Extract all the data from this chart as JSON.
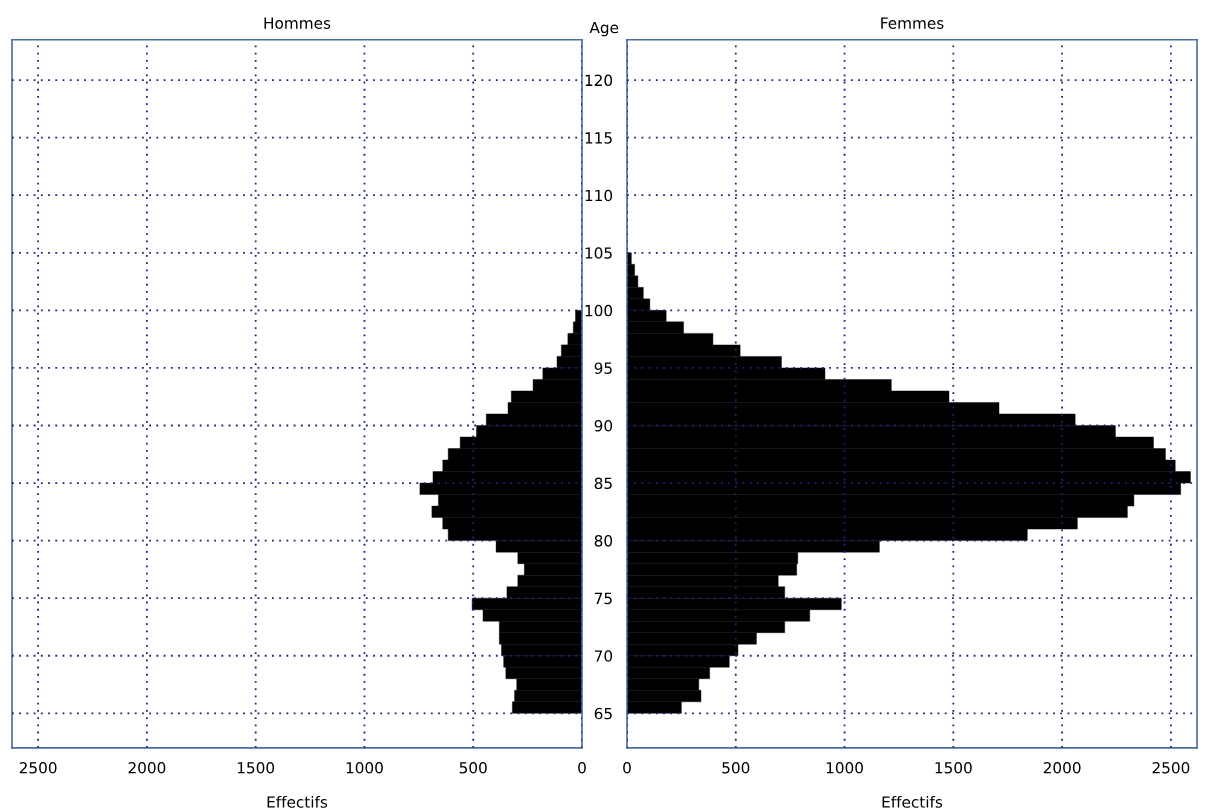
{
  "chart_data": [
    {
      "type": "bar",
      "orientation": "horizontal",
      "title": "Hommes",
      "xlabel": "Effectifs",
      "tick_labels": "x",
      "grid": true,
      "legend": false,
      "x": [
        65.5,
        66.5,
        67.5,
        68.5,
        69.5,
        70.5,
        71.5,
        72.5,
        73.5,
        74.5,
        75.5,
        76.5,
        77.5,
        78.5,
        79.5,
        80.5,
        81.5,
        82.5,
        83.5,
        84.5,
        85.5,
        86.5,
        87.5,
        88.5,
        89.5,
        90.5,
        91.5,
        92.5,
        93.5,
        94.5,
        95.5,
        96.5,
        97.5,
        98.5,
        99.5
      ],
      "values": [
        320,
        310,
        300,
        350,
        360,
        370,
        380,
        380,
        455,
        505,
        345,
        295,
        265,
        295,
        395,
        615,
        640,
        690,
        660,
        745,
        685,
        640,
        615,
        560,
        485,
        440,
        340,
        325,
        225,
        180,
        115,
        95,
        65,
        40,
        30
      ],
      "color": "#000000",
      "xlim": [
        2620,
        0
      ],
      "xticks": [
        0,
        500,
        1000,
        1500,
        2000,
        2500
      ],
      "ylim": [
        62,
        123.5
      ],
      "yticks": [
        65,
        70,
        75,
        80,
        85,
        90,
        95,
        100,
        105,
        110,
        115,
        120
      ]
    },
    {
      "type": "bar",
      "orientation": "horizontal",
      "title": "Femmes",
      "xlabel": "Effectifs",
      "ylabel": "Age",
      "grid": true,
      "legend": false,
      "x": [
        65.5,
        66.5,
        67.5,
        68.5,
        69.5,
        70.5,
        71.5,
        72.5,
        73.5,
        74.5,
        75.5,
        76.5,
        77.5,
        78.5,
        79.5,
        80.5,
        81.5,
        82.5,
        83.5,
        84.5,
        85.5,
        86.5,
        87.5,
        88.5,
        89.5,
        90.5,
        91.5,
        92.5,
        93.5,
        94.5,
        95.5,
        96.5,
        97.5,
        98.5,
        99.5,
        100.5,
        101.5,
        102.5,
        103.5,
        104.5
      ],
      "values": [
        250,
        340,
        330,
        380,
        470,
        510,
        595,
        725,
        840,
        985,
        725,
        695,
        780,
        785,
        1160,
        1840,
        2070,
        2300,
        2330,
        2545,
        2590,
        2520,
        2475,
        2420,
        2245,
        2060,
        1710,
        1480,
        1215,
        910,
        710,
        520,
        395,
        260,
        180,
        105,
        75,
        50,
        35,
        20
      ],
      "color": "#000000",
      "xlim": [
        0,
        2620
      ],
      "xticks": [
        0,
        500,
        1000,
        1500,
        2000,
        2500
      ],
      "ylim": [
        62,
        123.5
      ],
      "yticks": [
        65,
        70,
        75,
        80,
        85,
        90,
        95,
        100,
        105,
        110,
        115,
        120
      ]
    }
  ]
}
